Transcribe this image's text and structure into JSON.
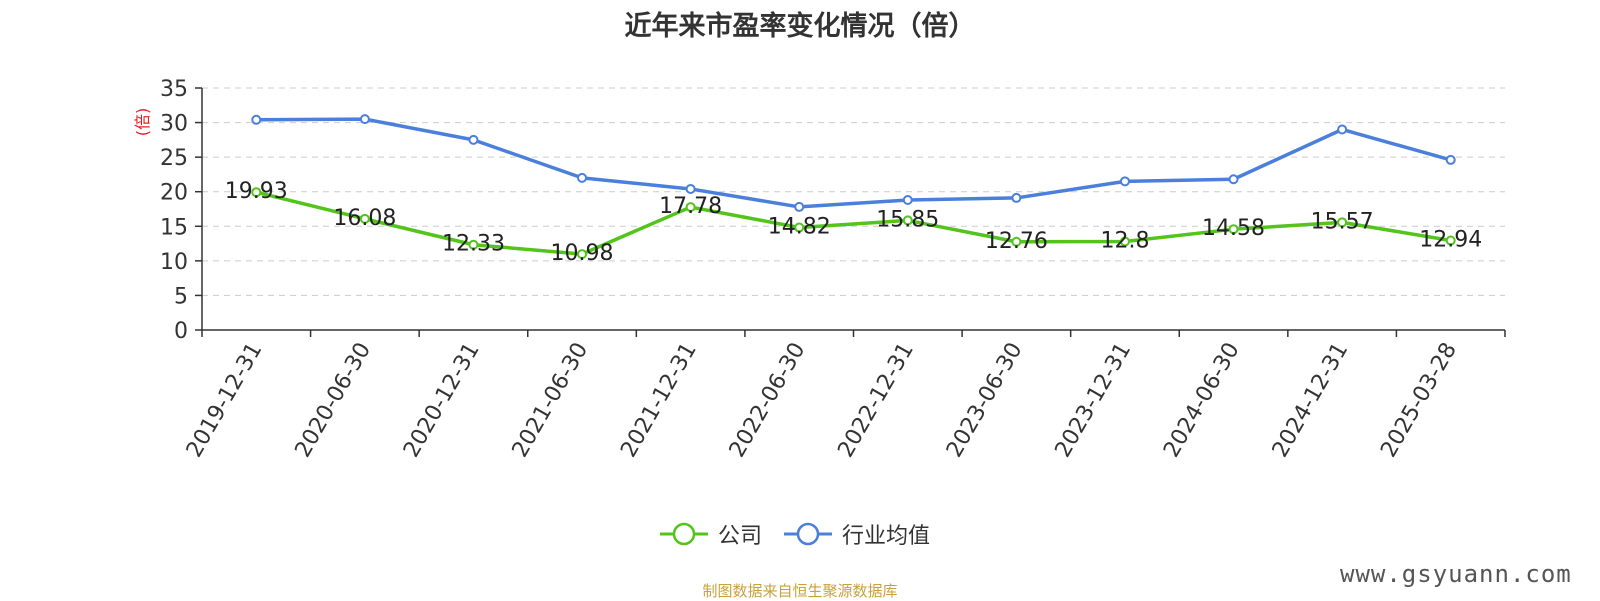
{
  "chart_data": {
    "type": "line",
    "title": "近年来市盈率变化情况（倍）",
    "ylabel": "(倍)",
    "ylim": [
      0,
      35
    ],
    "yticks": [
      0,
      5,
      10,
      15,
      20,
      25,
      30,
      35
    ],
    "grid": true,
    "legend_position": "bottom",
    "categories": [
      "2019-12-31",
      "2020-06-30",
      "2020-12-31",
      "2021-06-30",
      "2021-12-31",
      "2022-06-30",
      "2022-12-31",
      "2023-06-30",
      "2023-12-31",
      "2024-06-30",
      "2024-12-31",
      "2025-03-28"
    ],
    "series": [
      {
        "name": "公司",
        "color": "#52c41a",
        "values": [
          19.93,
          16.08,
          12.33,
          10.98,
          17.78,
          14.82,
          15.85,
          12.76,
          12.8,
          14.58,
          15.57,
          12.94
        ],
        "labels": [
          "19.93",
          "16.08",
          "12.33",
          "10.98",
          "17.78",
          "14.82",
          "15.85",
          "12.76",
          "12.8",
          "14.58",
          "15.57",
          "12.94"
        ]
      },
      {
        "name": "行业均值",
        "color": "#4a7fdc",
        "values": [
          30.4,
          30.5,
          27.5,
          22.0,
          20.4,
          17.8,
          18.8,
          19.1,
          21.5,
          21.8,
          29.0,
          24.6
        ]
      }
    ]
  },
  "footer": {
    "source": "制图数据来自恒生聚源数据库",
    "watermark": "www.gsyuann.com"
  }
}
